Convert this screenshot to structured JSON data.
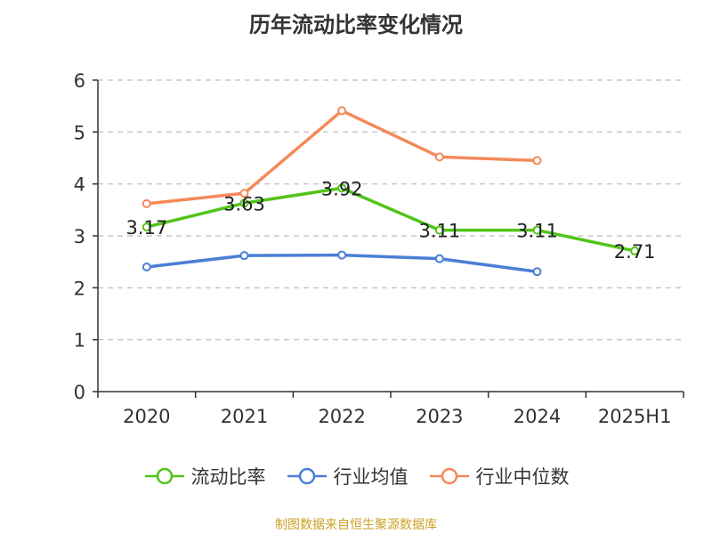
{
  "chart_data": {
    "type": "line",
    "title": "历年流动比率变化情况",
    "categories": [
      "2020",
      "2021",
      "2022",
      "2023",
      "2024",
      "2025H1"
    ],
    "y_ticks": [
      "0",
      "1",
      "2",
      "3",
      "4",
      "5",
      "6"
    ],
    "ylim": [
      0,
      6
    ],
    "grid": true,
    "legend_position": "bottom",
    "series": [
      {
        "name": "流动比率",
        "color": "#52c41a",
        "values": [
          3.17,
          3.63,
          3.92,
          3.11,
          3.11,
          2.71
        ],
        "labels": [
          "3.17",
          "3.63",
          "3.92",
          "3.11",
          "3.11",
          "2.71"
        ]
      },
      {
        "name": "行业均值",
        "color": "#4a7fd6",
        "values": [
          2.4,
          2.62,
          2.63,
          2.56,
          2.31,
          null
        ]
      },
      {
        "name": "行业中位数",
        "color": "#f5895a",
        "values": [
          3.62,
          3.82,
          5.41,
          4.52,
          4.45,
          null
        ]
      }
    ]
  },
  "footer": {
    "source": "制图数据来自恒生聚源数据库"
  }
}
